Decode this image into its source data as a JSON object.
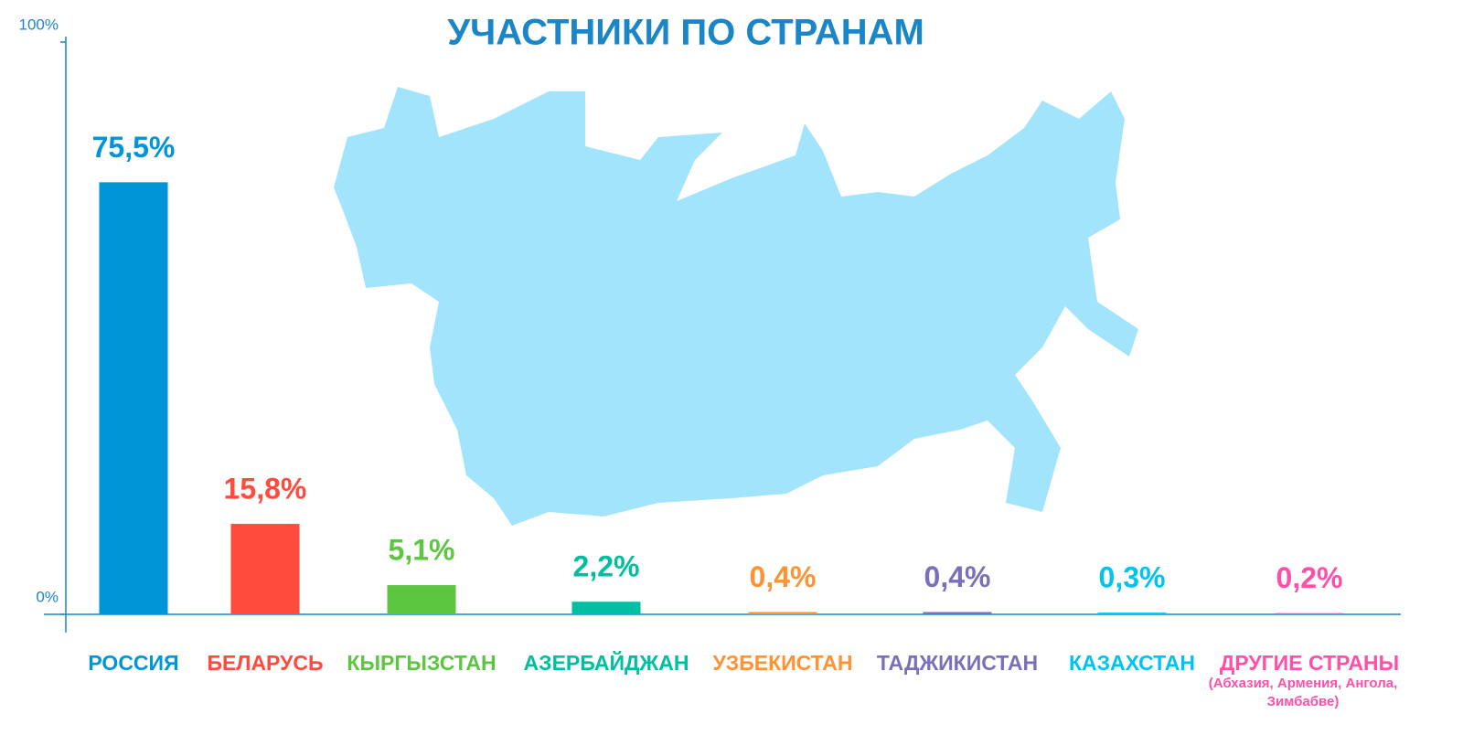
{
  "chart_data": {
    "type": "bar",
    "title": "УЧАСТНИКИ ПО СТРАНАМ",
    "categories": [
      "РОССИЯ",
      "БЕЛАРУСЬ",
      "КЫРГЫЗСТАН",
      "АЗЕРБАЙДЖАН",
      "УЗБЕКИСТАН",
      "ТАДЖИКИСТАН",
      "КАЗАХСТАН",
      "ДРУГИЕ СТРАНЫ"
    ],
    "values": [
      75.5,
      15.8,
      5.1,
      2.2,
      0.4,
      0.4,
      0.3,
      0.2
    ],
    "value_labels": [
      "75,5%",
      "15,8%",
      "5,1%",
      "2,2%",
      "0,4%",
      "0,4%",
      "0,3%",
      "0,2%"
    ],
    "colors": [
      "#0095d6",
      "#ff4b3e",
      "#5cc641",
      "#00bfa0",
      "#ff9232",
      "#7b6fb8",
      "#00c4f0",
      "#ff4fa8"
    ],
    "note": "(Абхазия,  Армения, Ангола, Зимбабве)",
    "ylim": [
      0,
      100
    ],
    "yticks": [
      {
        "value": 0,
        "label": "0%"
      },
      {
        "value": 100,
        "label": "100%"
      }
    ]
  }
}
